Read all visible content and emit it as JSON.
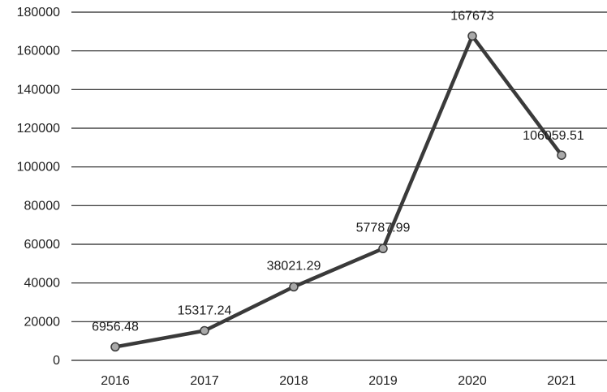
{
  "chart_data": {
    "type": "line",
    "title": "",
    "xlabel": "",
    "ylabel": "",
    "categories": [
      "2016",
      "2017",
      "2018",
      "2019",
      "2020",
      "2021"
    ],
    "series": [
      {
        "values": [
          6956.48,
          15317.24,
          38021.29,
          57787.99,
          167673,
          106059.51
        ]
      }
    ],
    "data_labels": [
      "6956.48",
      "15317.24",
      "38021.29",
      "57787.99",
      "167673",
      "106059.51"
    ],
    "y_ticks": [
      "0",
      "20000",
      "40000",
      "60000",
      "80000",
      "100000",
      "120000",
      "140000",
      "160000",
      "180000"
    ],
    "ylim": [
      0,
      180000
    ],
    "grid": "horizontal",
    "legend": "none",
    "colors": {
      "line": "#3a3a3a",
      "marker_fill": "#a9a9a9",
      "grid": "#222222"
    }
  }
}
